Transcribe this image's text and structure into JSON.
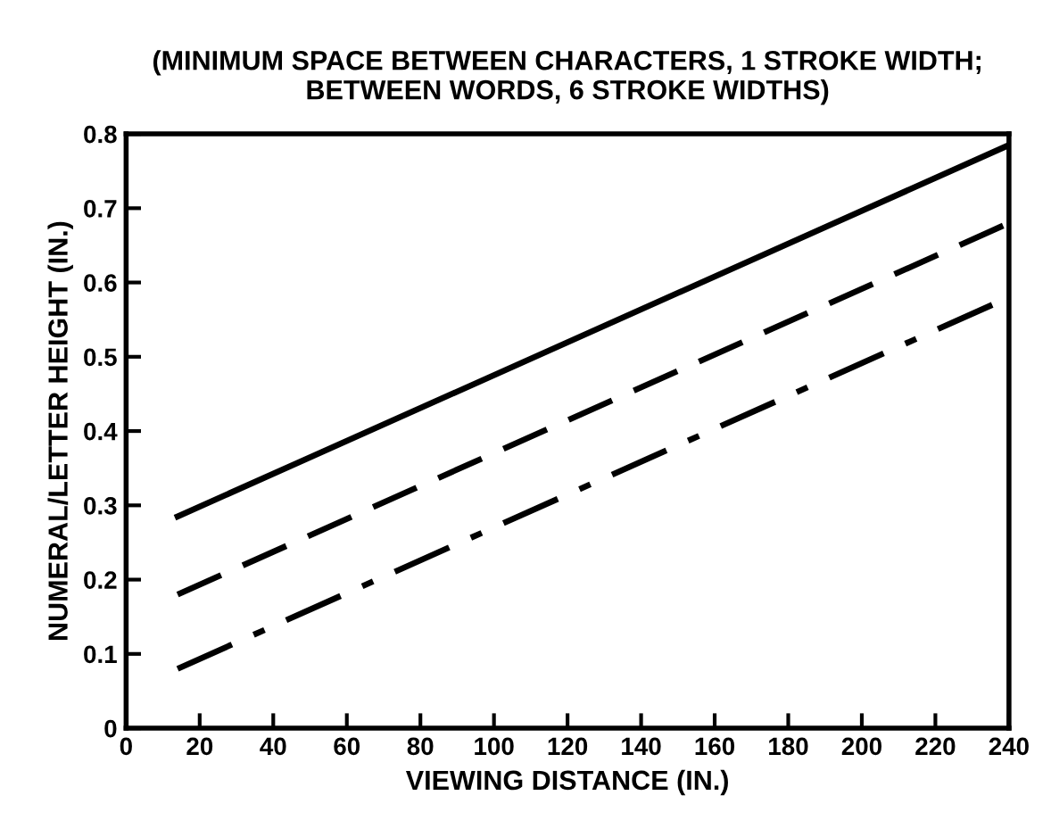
{
  "chart_data": {
    "type": "line",
    "title": "(MINIMUM SPACE BETWEEN CHARACTERS, 1 STROKE WIDTH;\nBETWEEN WORDS, 6 STROKE WIDTHS)",
    "xlabel": "VIEWING DISTANCE (IN.)",
    "ylabel": "NUMERAL/LETTER HEIGHT (IN.)",
    "x": [
      14,
      240
    ],
    "series": [
      {
        "color": "#000000",
        "line_style": "solid",
        "values": [
          0.285,
          0.785
        ]
      },
      {
        "color": "#000000",
        "line_style": "dashed",
        "values": [
          0.18,
          0.68
        ]
      },
      {
        "color": "#000000",
        "line_style": "dashdot",
        "values": [
          0.08,
          0.58
        ]
      }
    ],
    "xlim": [
      0,
      240
    ],
    "xticks": [
      0,
      20,
      40,
      60,
      80,
      100,
      120,
      140,
      160,
      180,
      200,
      220,
      240
    ],
    "ylim": [
      0,
      0.8
    ],
    "yticks": [
      0,
      0.1,
      0.2,
      0.3,
      0.4,
      0.5,
      0.6,
      0.7,
      0.8
    ],
    "grid": false,
    "legend": false,
    "marker": "none"
  }
}
